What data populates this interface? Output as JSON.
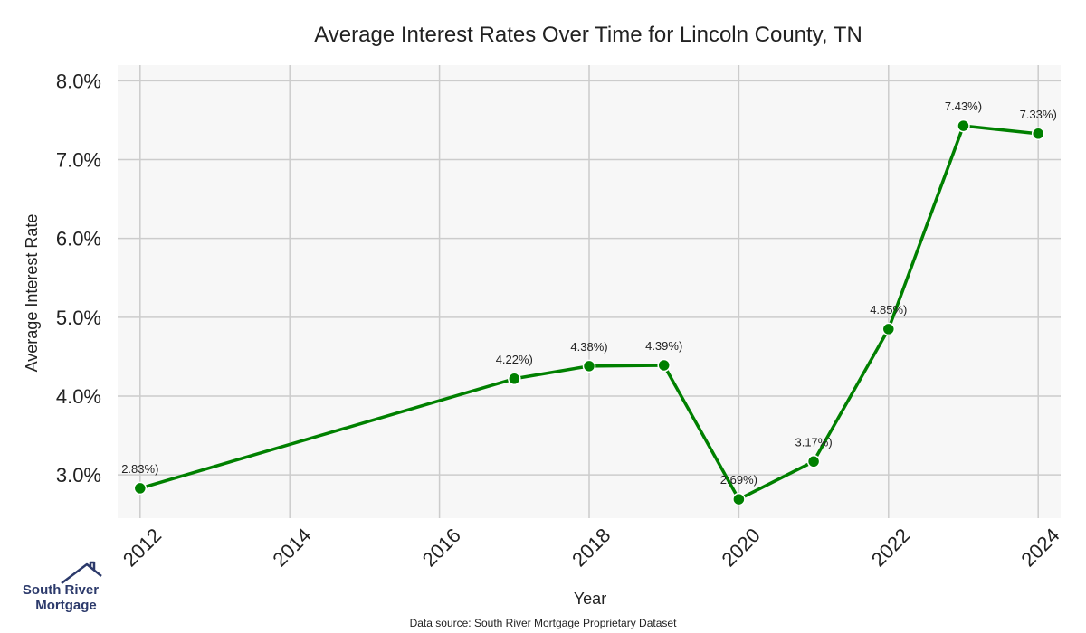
{
  "chart_data": {
    "type": "line",
    "title": "Average Interest Rates Over Time for Lincoln County, TN",
    "xlabel": "Year",
    "ylabel": "Average Interest Rate",
    "x": [
      2012,
      2017,
      2018,
      2019,
      2020,
      2021,
      2022,
      2023,
      2024
    ],
    "series": [
      {
        "values": [
          2.83,
          4.22,
          4.38,
          4.39,
          2.69,
          3.17,
          4.85,
          7.43,
          7.33
        ],
        "labels": [
          "2.83%)",
          "4.22%)",
          "4.38%)",
          "4.39%)",
          "2.69%)",
          "3.17%)",
          "4.85%)",
          "7.43%)",
          "7.33%)"
        ],
        "color": "#008000"
      }
    ],
    "xticks": [
      "2012",
      "2014",
      "2016",
      "2018",
      "2020",
      "2022",
      "2024"
    ],
    "yticks": [
      "3.0%",
      "4.0%",
      "5.0%",
      "6.0%",
      "7.0%",
      "8.0%"
    ],
    "xlim": [
      2011.7,
      2024.3
    ],
    "ylim": [
      2.45,
      8.2
    ],
    "grid": true,
    "legend": "none"
  },
  "source_note": "Data source: South River Mortgage Proprietary Dataset",
  "logo": {
    "line1": "South River",
    "line2": "Mortgage",
    "icon": "house-roof-icon"
  },
  "colors": {
    "plot_bg": "#f7f7f7",
    "grid": "#cccccc",
    "line": "#008000"
  }
}
